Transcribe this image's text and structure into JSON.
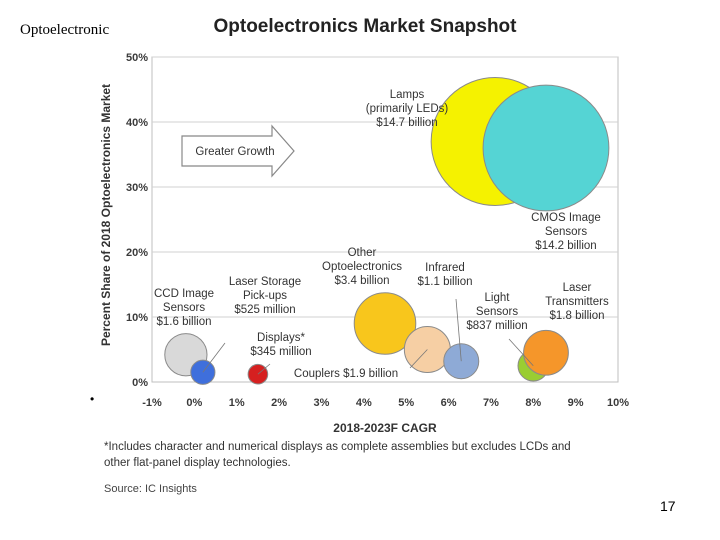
{
  "slide": {
    "title": "Optoelectronic",
    "bullet": "•",
    "page_number": "17"
  },
  "chart_data": {
    "type": "scatter",
    "title": "Optoelectronics Market Snapshot",
    "xlabel": "2018-2023F CAGR",
    "ylabel": "Percent Share of 2018 Optoelectronics Market",
    "xlim": [
      -1,
      10
    ],
    "ylim": [
      0,
      50
    ],
    "x_ticks": [
      "-1%",
      "0%",
      "1%",
      "2%",
      "3%",
      "4%",
      "5%",
      "6%",
      "7%",
      "8%",
      "9%",
      "10%"
    ],
    "y_ticks": [
      "0%",
      "10%",
      "20%",
      "30%",
      "40%",
      "50%"
    ],
    "annotation": "Greater Growth",
    "points": [
      {
        "name": "Lamps (primarily LEDs)",
        "lines": [
          "Lamps",
          "(primarily LEDs)",
          "$14.7 billion"
        ],
        "x": 7.1,
        "y": 37,
        "revenue_billion": 14.7,
        "color": "#f5f200"
      },
      {
        "name": "CMOS Image Sensors",
        "lines": [
          "CMOS Image",
          "Sensors",
          "$14.2 billion"
        ],
        "x": 8.3,
        "y": 36,
        "revenue_billion": 14.2,
        "color": "#55d4d4"
      },
      {
        "name": "Other Optoelectronics",
        "lines": [
          "Other",
          "Optoelectronics",
          "$3.4 billion"
        ],
        "x": 4.5,
        "y": 9,
        "revenue_billion": 3.4,
        "color": "#f8c61c"
      },
      {
        "name": "CCD Image Sensors",
        "lines": [
          "CCD Image",
          "Sensors",
          "$1.6 billion"
        ],
        "x": -0.2,
        "y": 4.2,
        "revenue_billion": 1.6,
        "color": "#d9d9d9"
      },
      {
        "name": "Laser Storage Pick-ups",
        "lines": [
          "Laser Storage",
          "Pick-ups",
          "$525 million"
        ],
        "x": 0.2,
        "y": 1.5,
        "revenue_billion": 0.525,
        "color": "#3f6fdc"
      },
      {
        "name": "Displays*",
        "lines": [
          "Displays*",
          "$345 million"
        ],
        "x": 1.5,
        "y": 1.2,
        "revenue_billion": 0.345,
        "color": "#d62020"
      },
      {
        "name": "Couplers",
        "lines": [
          "Couplers $1.9 billion"
        ],
        "x": 5.5,
        "y": 5,
        "revenue_billion": 1.9,
        "color": "#f6cfa4"
      },
      {
        "name": "Infrared",
        "lines": [
          "Infrared",
          "$1.1 billion"
        ],
        "x": 6.3,
        "y": 3.2,
        "revenue_billion": 1.1,
        "color": "#8eaad6"
      },
      {
        "name": "Light Sensors",
        "lines": [
          "Light",
          "Sensors",
          "$837 million"
        ],
        "x": 8.0,
        "y": 2.5,
        "revenue_billion": 0.837,
        "color": "#9acd32"
      },
      {
        "name": "Laser Transmitters",
        "lines": [
          "Laser",
          "Transmitters",
          "$1.8 billion"
        ],
        "x": 8.3,
        "y": 4.5,
        "revenue_billion": 1.8,
        "color": "#f5962a"
      }
    ],
    "footnote": [
      "*Includes character and numerical displays as complete assemblies but excludes LCDs and",
      "other flat-panel display technologies."
    ],
    "source": "Source: IC Insights"
  }
}
